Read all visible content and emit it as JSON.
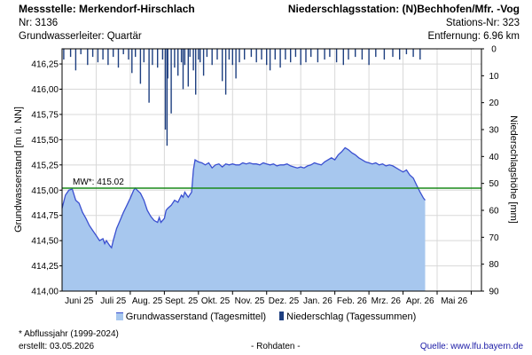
{
  "header": {
    "station": "Messstelle: Merkendorf-Hirschlach",
    "nr": "Nr: 3136",
    "aquifer": "Grundwasserleiter: Quartär",
    "precip_station": "Niederschlagsstation: (N)Bechhofen/Mfr. -Vog",
    "precip_nr": "Stations-Nr: 323",
    "distance": "Entfernung: 6.96 km"
  },
  "legend": {
    "groundwater": "Grundwasserstand (Tagesmittel)",
    "precip": "Niederschlag (Tagessummen)"
  },
  "footer": {
    "note": "* Abflussjahr (1999-2024)",
    "created": "erstellt:  03.05.2026",
    "raw": "- Rohdaten -",
    "source": "Quelle:  www.lfu.bayern.de"
  },
  "colors": {
    "area_fill": "#a7c7ee",
    "line": "#3a4fd0",
    "mean_line": "#1a8a1a",
    "precip_bar": "#1e3f80"
  },
  "chart_data": {
    "type": "area",
    "ylabel_left": "Grundwasserstand [m ü. NN]",
    "ylabel_right": "Niederschlagshöhe [mm]",
    "ylim_left": [
      414.0,
      416.4
    ],
    "yticks_left": [
      "414,00",
      "414,25",
      "414,50",
      "414,75",
      "415,00",
      "415,25",
      "415,50",
      "415,75",
      "416,00",
      "416,25"
    ],
    "yticks_left_values": [
      414.0,
      414.25,
      414.5,
      414.75,
      415.0,
      415.25,
      415.5,
      415.75,
      416.0,
      416.25
    ],
    "ylim_right": [
      0,
      90
    ],
    "yticks_right": [
      0,
      10,
      20,
      30,
      40,
      50,
      60,
      70,
      80,
      90
    ],
    "xlim_months": [
      0,
      12.3
    ],
    "xticks": [
      {
        "label": "Juni 25",
        "at": 0.5
      },
      {
        "label": "Juli 25",
        "at": 1.5
      },
      {
        "label": "Aug. 25",
        "at": 2.5
      },
      {
        "label": "Sept. 25",
        "at": 3.5
      },
      {
        "label": "Okt. 25",
        "at": 4.5
      },
      {
        "label": "Nov. 25",
        "at": 5.5
      },
      {
        "label": "Dez. 25",
        "at": 6.5
      },
      {
        "label": "Jan. 26",
        "at": 7.5
      },
      {
        "label": "Feb. 26",
        "at": 8.5
      },
      {
        "label": "Mrz. 26",
        "at": 9.5
      },
      {
        "label": "Apr. 26",
        "at": 10.5
      },
      {
        "label": "Mai 26",
        "at": 11.5
      }
    ],
    "month_boundaries": [
      1,
      2,
      3,
      4,
      5,
      6,
      7,
      8,
      9,
      10,
      11,
      12
    ],
    "mean": {
      "label": "MW*: 415.02",
      "value": 415.02
    },
    "groundwater": [
      [
        0.0,
        414.82
      ],
      [
        0.1,
        414.95
      ],
      [
        0.2,
        415.0
      ],
      [
        0.3,
        415.01
      ],
      [
        0.4,
        414.9
      ],
      [
        0.5,
        414.87
      ],
      [
        0.6,
        414.78
      ],
      [
        0.7,
        414.72
      ],
      [
        0.8,
        414.65
      ],
      [
        0.9,
        414.6
      ],
      [
        1.0,
        414.55
      ],
      [
        1.1,
        414.5
      ],
      [
        1.2,
        414.52
      ],
      [
        1.25,
        414.47
      ],
      [
        1.3,
        414.5
      ],
      [
        1.4,
        414.45
      ],
      [
        1.45,
        414.43
      ],
      [
        1.5,
        414.5
      ],
      [
        1.6,
        414.62
      ],
      [
        1.7,
        414.7
      ],
      [
        1.8,
        414.78
      ],
      [
        1.9,
        414.85
      ],
      [
        2.0,
        414.92
      ],
      [
        2.1,
        415.0
      ],
      [
        2.15,
        415.02
      ],
      [
        2.2,
        415.0
      ],
      [
        2.3,
        414.97
      ],
      [
        2.4,
        414.9
      ],
      [
        2.5,
        414.8
      ],
      [
        2.6,
        414.74
      ],
      [
        2.7,
        414.7
      ],
      [
        2.8,
        414.68
      ],
      [
        2.85,
        414.73
      ],
      [
        2.9,
        414.68
      ],
      [
        3.0,
        414.72
      ],
      [
        3.05,
        414.8
      ],
      [
        3.1,
        414.82
      ],
      [
        3.2,
        414.85
      ],
      [
        3.3,
        414.9
      ],
      [
        3.4,
        414.88
      ],
      [
        3.5,
        414.95
      ],
      [
        3.55,
        414.93
      ],
      [
        3.6,
        414.98
      ],
      [
        3.7,
        414.93
      ],
      [
        3.8,
        414.98
      ],
      [
        3.85,
        415.2
      ],
      [
        3.9,
        415.3
      ],
      [
        4.0,
        415.28
      ],
      [
        4.1,
        415.27
      ],
      [
        4.2,
        415.25
      ],
      [
        4.3,
        415.27
      ],
      [
        4.4,
        415.22
      ],
      [
        4.5,
        415.25
      ],
      [
        4.6,
        415.26
      ],
      [
        4.7,
        415.23
      ],
      [
        4.8,
        415.26
      ],
      [
        4.9,
        415.25
      ],
      [
        5.0,
        415.26
      ],
      [
        5.1,
        415.25
      ],
      [
        5.2,
        415.25
      ],
      [
        5.3,
        415.27
      ],
      [
        5.4,
        415.26
      ],
      [
        5.5,
        415.27
      ],
      [
        5.6,
        415.26
      ],
      [
        5.7,
        415.26
      ],
      [
        5.8,
        415.25
      ],
      [
        5.9,
        415.27
      ],
      [
        6.0,
        415.26
      ],
      [
        6.1,
        415.25
      ],
      [
        6.2,
        415.26
      ],
      [
        6.3,
        415.24
      ],
      [
        6.4,
        415.25
      ],
      [
        6.5,
        415.25
      ],
      [
        6.6,
        415.26
      ],
      [
        6.7,
        415.24
      ],
      [
        6.8,
        415.23
      ],
      [
        6.9,
        415.22
      ],
      [
        7.0,
        415.23
      ],
      [
        7.1,
        415.22
      ],
      [
        7.2,
        415.24
      ],
      [
        7.3,
        415.25
      ],
      [
        7.4,
        415.27
      ],
      [
        7.5,
        415.26
      ],
      [
        7.6,
        415.25
      ],
      [
        7.7,
        415.28
      ],
      [
        7.8,
        415.3
      ],
      [
        7.9,
        415.32
      ],
      [
        8.0,
        415.3
      ],
      [
        8.1,
        415.35
      ],
      [
        8.2,
        415.38
      ],
      [
        8.3,
        415.42
      ],
      [
        8.4,
        415.4
      ],
      [
        8.5,
        415.37
      ],
      [
        8.6,
        415.35
      ],
      [
        8.7,
        415.32
      ],
      [
        8.8,
        415.3
      ],
      [
        8.9,
        415.28
      ],
      [
        9.0,
        415.27
      ],
      [
        9.1,
        415.26
      ],
      [
        9.2,
        415.27
      ],
      [
        9.3,
        415.25
      ],
      [
        9.4,
        415.26
      ],
      [
        9.5,
        415.24
      ],
      [
        9.6,
        415.25
      ],
      [
        9.7,
        415.24
      ],
      [
        9.8,
        415.22
      ],
      [
        9.9,
        415.2
      ],
      [
        10.0,
        415.18
      ],
      [
        10.1,
        415.2
      ],
      [
        10.2,
        415.15
      ],
      [
        10.3,
        415.12
      ],
      [
        10.4,
        415.05
      ],
      [
        10.5,
        414.98
      ],
      [
        10.6,
        414.92
      ],
      [
        10.65,
        414.9
      ]
    ],
    "precip": [
      [
        0.05,
        4
      ],
      [
        0.25,
        3
      ],
      [
        0.4,
        8
      ],
      [
        0.55,
        2
      ],
      [
        0.75,
        6
      ],
      [
        0.9,
        3
      ],
      [
        1.05,
        5
      ],
      [
        1.2,
        4
      ],
      [
        1.35,
        6
      ],
      [
        1.5,
        3
      ],
      [
        1.65,
        7
      ],
      [
        1.8,
        2
      ],
      [
        1.95,
        4
      ],
      [
        2.05,
        9
      ],
      [
        2.15,
        3
      ],
      [
        2.3,
        13
      ],
      [
        2.4,
        5
      ],
      [
        2.55,
        20
      ],
      [
        2.65,
        6
      ],
      [
        2.8,
        7
      ],
      [
        2.95,
        4
      ],
      [
        3.1,
        11
      ],
      [
        3.2,
        24
      ],
      [
        3.3,
        7
      ],
      [
        3.4,
        10
      ],
      [
        3.5,
        5
      ],
      [
        3.55,
        15
      ],
      [
        3.6,
        6
      ],
      [
        3.7,
        14
      ],
      [
        3.75,
        3
      ],
      [
        3.85,
        8
      ],
      [
        3.92,
        17
      ],
      [
        4.0,
        4
      ],
      [
        4.05,
        5
      ],
      [
        4.15,
        10
      ],
      [
        4.25,
        3
      ],
      [
        4.4,
        6
      ],
      [
        4.55,
        4
      ],
      [
        4.7,
        12
      ],
      [
        4.8,
        17
      ],
      [
        4.9,
        4
      ],
      [
        5.0,
        6
      ],
      [
        5.1,
        11
      ],
      [
        5.2,
        5
      ],
      [
        5.35,
        4
      ],
      [
        5.55,
        3
      ],
      [
        5.7,
        5
      ],
      [
        5.85,
        4
      ],
      [
        6.0,
        6
      ],
      [
        6.1,
        8
      ],
      [
        6.25,
        4
      ],
      [
        6.4,
        7
      ],
      [
        6.55,
        4
      ],
      [
        6.7,
        5
      ],
      [
        6.85,
        3
      ],
      [
        7.0,
        6
      ],
      [
        7.15,
        5
      ],
      [
        7.3,
        3
      ],
      [
        7.5,
        5
      ],
      [
        7.7,
        4
      ],
      [
        7.85,
        3
      ],
      [
        8.05,
        5
      ],
      [
        8.25,
        6
      ],
      [
        8.4,
        4
      ],
      [
        8.6,
        3
      ],
      [
        8.8,
        4
      ],
      [
        9.0,
        6
      ],
      [
        9.2,
        3
      ],
      [
        9.45,
        4
      ],
      [
        9.7,
        3
      ],
      [
        9.9,
        4
      ],
      [
        10.1,
        2
      ],
      [
        10.3,
        3
      ],
      [
        10.5,
        4
      ],
      [
        3.03,
        30
      ],
      [
        3.08,
        36
      ]
    ]
  }
}
